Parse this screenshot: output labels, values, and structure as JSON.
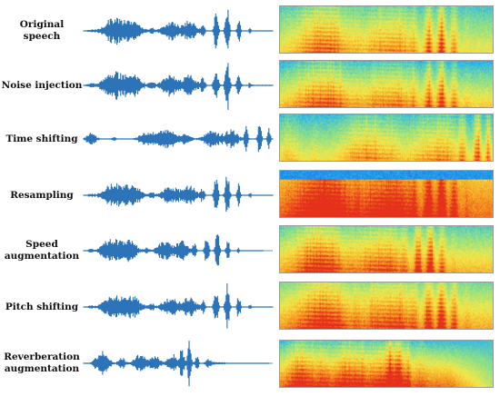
{
  "rows": [
    {
      "label": "Original speech"
    },
    {
      "label": "Noise injection"
    },
    {
      "label": "Time shifting"
    },
    {
      "label": "Resampling"
    },
    {
      "label": "Speed\naugmentation"
    },
    {
      "label": "Pitch shifting"
    },
    {
      "label": "Reverberation\naugmentation"
    }
  ],
  "colors": {
    "waveform": "#2c73b8",
    "spectrogram_palette": [
      "#1a3fd6",
      "#27b3f0",
      "#8be08a",
      "#f5e948",
      "#f59a21",
      "#e5301b"
    ]
  }
}
